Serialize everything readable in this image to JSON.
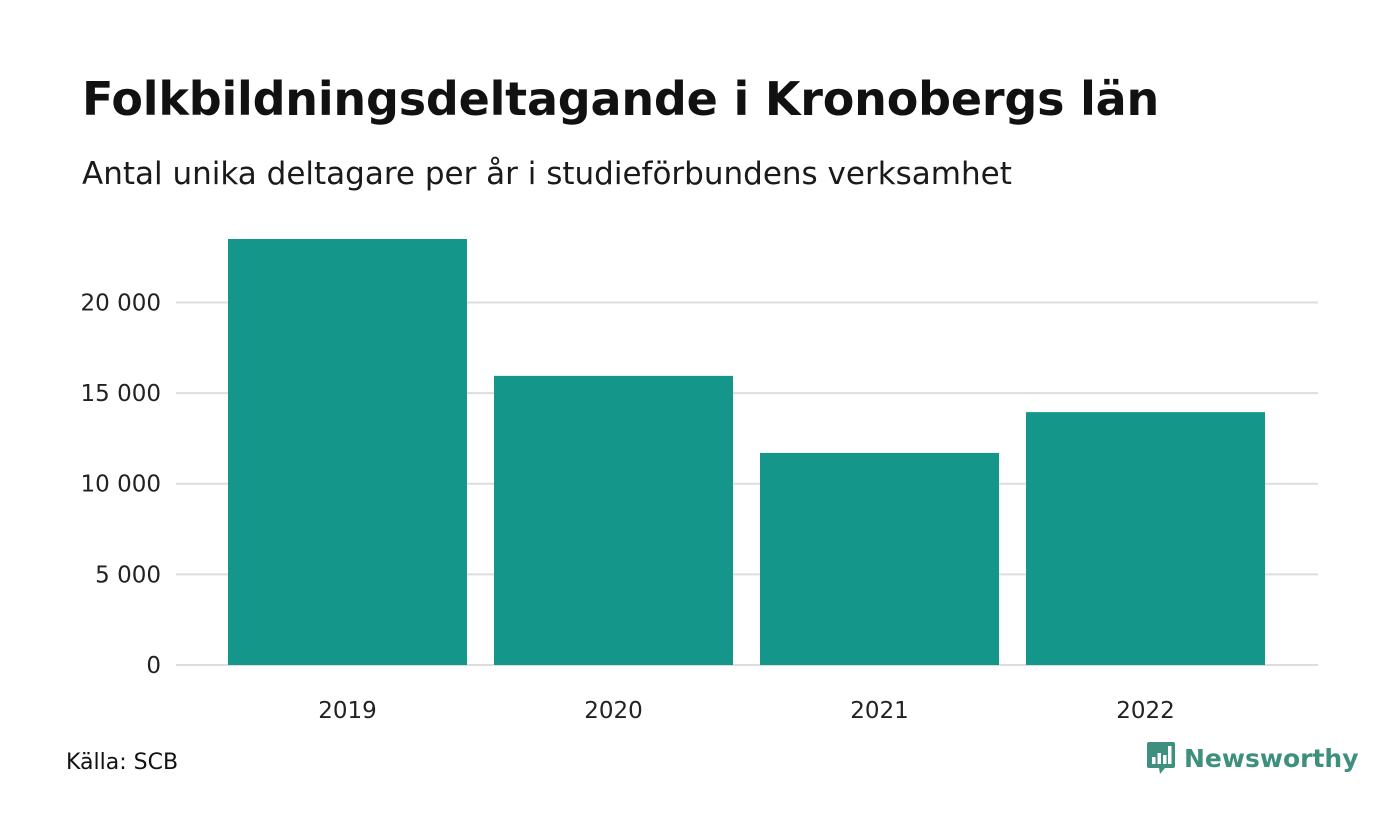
{
  "title": "Folkbildningsdeltagande i Kronobergs län",
  "subtitle": "Antal unika deltagare per år i studieförbundens verksamhet",
  "source": "Källa: SCB",
  "brand": {
    "name": "Newsworthy",
    "icon": "newsworthy-logo-icon",
    "color": "#3f8f7f"
  },
  "colors": {
    "bar": "#15968a",
    "grid": "#dddddd"
  },
  "chart_data": {
    "type": "bar",
    "title": "Folkbildningsdeltagande i Kronobergs län",
    "subtitle": "Antal unika deltagare per år i studieförbundens verksamhet",
    "xlabel": "",
    "ylabel": "",
    "categories": [
      "2019",
      "2020",
      "2021",
      "2022"
    ],
    "values": [
      23500,
      15950,
      11700,
      13950
    ],
    "ylim": [
      0,
      23500
    ],
    "yticks": [
      0,
      5000,
      10000,
      15000,
      20000
    ],
    "ytick_labels": [
      "0",
      "5 000",
      "10 000",
      "15 000",
      "20 000"
    ],
    "grid": true,
    "legend": "none"
  }
}
